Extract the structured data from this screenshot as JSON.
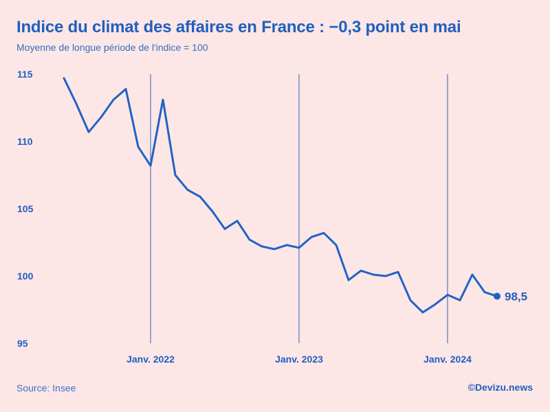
{
  "title": "Indice du climat des affaires en France : −0,3 point en mai",
  "subtitle": "Moyenne de longue période de l'indice = 100",
  "source": "Source: Insee",
  "credit": "©Devizu.news",
  "colors": {
    "background": "#fde6e6",
    "line": "#1f63c4",
    "text": "#1f5fbf"
  },
  "chart_data": {
    "type": "line",
    "title": "Indice du climat des affaires en France : −0,3 point en mai",
    "subtitle": "Moyenne de longue période de l'indice = 100",
    "xlabel": "",
    "ylabel": "",
    "ylim": [
      95,
      115
    ],
    "yticks": [
      115,
      110,
      105,
      100,
      95
    ],
    "xticks": [
      {
        "label": "Janv. 2022",
        "x": "2022-01"
      },
      {
        "label": "Janv. 2023",
        "x": "2023-01"
      },
      {
        "label": "Janv. 2024",
        "x": "2024-01"
      }
    ],
    "grid": "vertical lines at January of each year",
    "x": [
      "2021-06",
      "2021-07",
      "2021-08",
      "2021-09",
      "2021-10",
      "2021-11",
      "2021-12",
      "2022-01",
      "2022-02",
      "2022-03",
      "2022-04",
      "2022-05",
      "2022-06",
      "2022-07",
      "2022-08",
      "2022-09",
      "2022-10",
      "2022-11",
      "2022-12",
      "2023-01",
      "2023-02",
      "2023-03",
      "2023-04",
      "2023-05",
      "2023-06",
      "2023-07",
      "2023-08",
      "2023-09",
      "2023-10",
      "2023-11",
      "2023-12",
      "2024-01",
      "2024-02",
      "2024-03",
      "2024-04",
      "2024-05"
    ],
    "series": [
      {
        "values": [
          114.7,
          112.8,
          110.7,
          111.8,
          113.1,
          113.9,
          109.6,
          108.2,
          113.1,
          107.5,
          106.4,
          105.9,
          104.8,
          103.5,
          104.1,
          102.7,
          102.2,
          102.0,
          102.3,
          102.1,
          102.9,
          103.2,
          102.3,
          99.7,
          100.4,
          100.1,
          100.0,
          100.3,
          98.2,
          97.3,
          97.9,
          98.6,
          98.2,
          100.1,
          98.8,
          98.5
        ]
      }
    ],
    "end_label": "98,5"
  }
}
